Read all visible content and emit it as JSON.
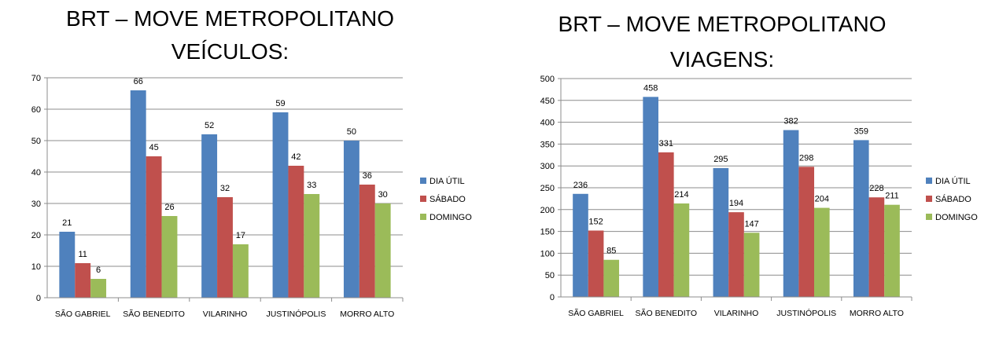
{
  "charts": [
    {
      "title_lines": [
        "BRT – MOVE METROPOLITANO",
        "VEÍCULOS:"
      ]
    },
    {
      "title_lines": [
        "BRT – MOVE METROPOLITANO",
        "VIAGENS:"
      ]
    }
  ],
  "colors": {
    "dia_util": "#4F81BD",
    "sabado": "#C0504D",
    "domingo": "#9BBB59",
    "grid": "#8C8C8C"
  },
  "chart_data": [
    {
      "type": "bar",
      "title": "BRT – MOVE METROPOLITANO VEÍCULOS:",
      "categories": [
        "SÃO GABRIEL",
        "SÃO BENEDITO",
        "VILARINHO",
        "JUSTINÓPOLIS",
        "MORRO ALTO"
      ],
      "series": [
        {
          "name": "DIA ÚTIL",
          "values": [
            21,
            66,
            52,
            59,
            50
          ]
        },
        {
          "name": "SÁBADO",
          "values": [
            11,
            45,
            32,
            42,
            36
          ]
        },
        {
          "name": "DOMINGO",
          "values": [
            6,
            26,
            17,
            33,
            30
          ]
        }
      ],
      "ylim": [
        0,
        70
      ],
      "yticks": [
        0,
        10,
        20,
        30,
        40,
        50,
        60,
        70
      ],
      "grid": true,
      "legend": "right"
    },
    {
      "type": "bar",
      "title": "BRT – MOVE METROPOLITANO VIAGENS:",
      "categories": [
        "SÃO GABRIEL",
        "SÃO BENEDITO",
        "VILARINHO",
        "JUSTINÓPOLIS",
        "MORRO ALTO"
      ],
      "series": [
        {
          "name": "DIA ÚTIL",
          "values": [
            236,
            458,
            295,
            382,
            359
          ]
        },
        {
          "name": "SÁBADO",
          "values": [
            152,
            331,
            194,
            298,
            228
          ]
        },
        {
          "name": "DOMINGO",
          "values": [
            85,
            214,
            147,
            204,
            211
          ]
        }
      ],
      "ylim": [
        0,
        500
      ],
      "yticks": [
        0,
        50,
        100,
        150,
        200,
        250,
        300,
        350,
        400,
        450,
        500
      ],
      "grid": true,
      "legend": "right"
    }
  ]
}
